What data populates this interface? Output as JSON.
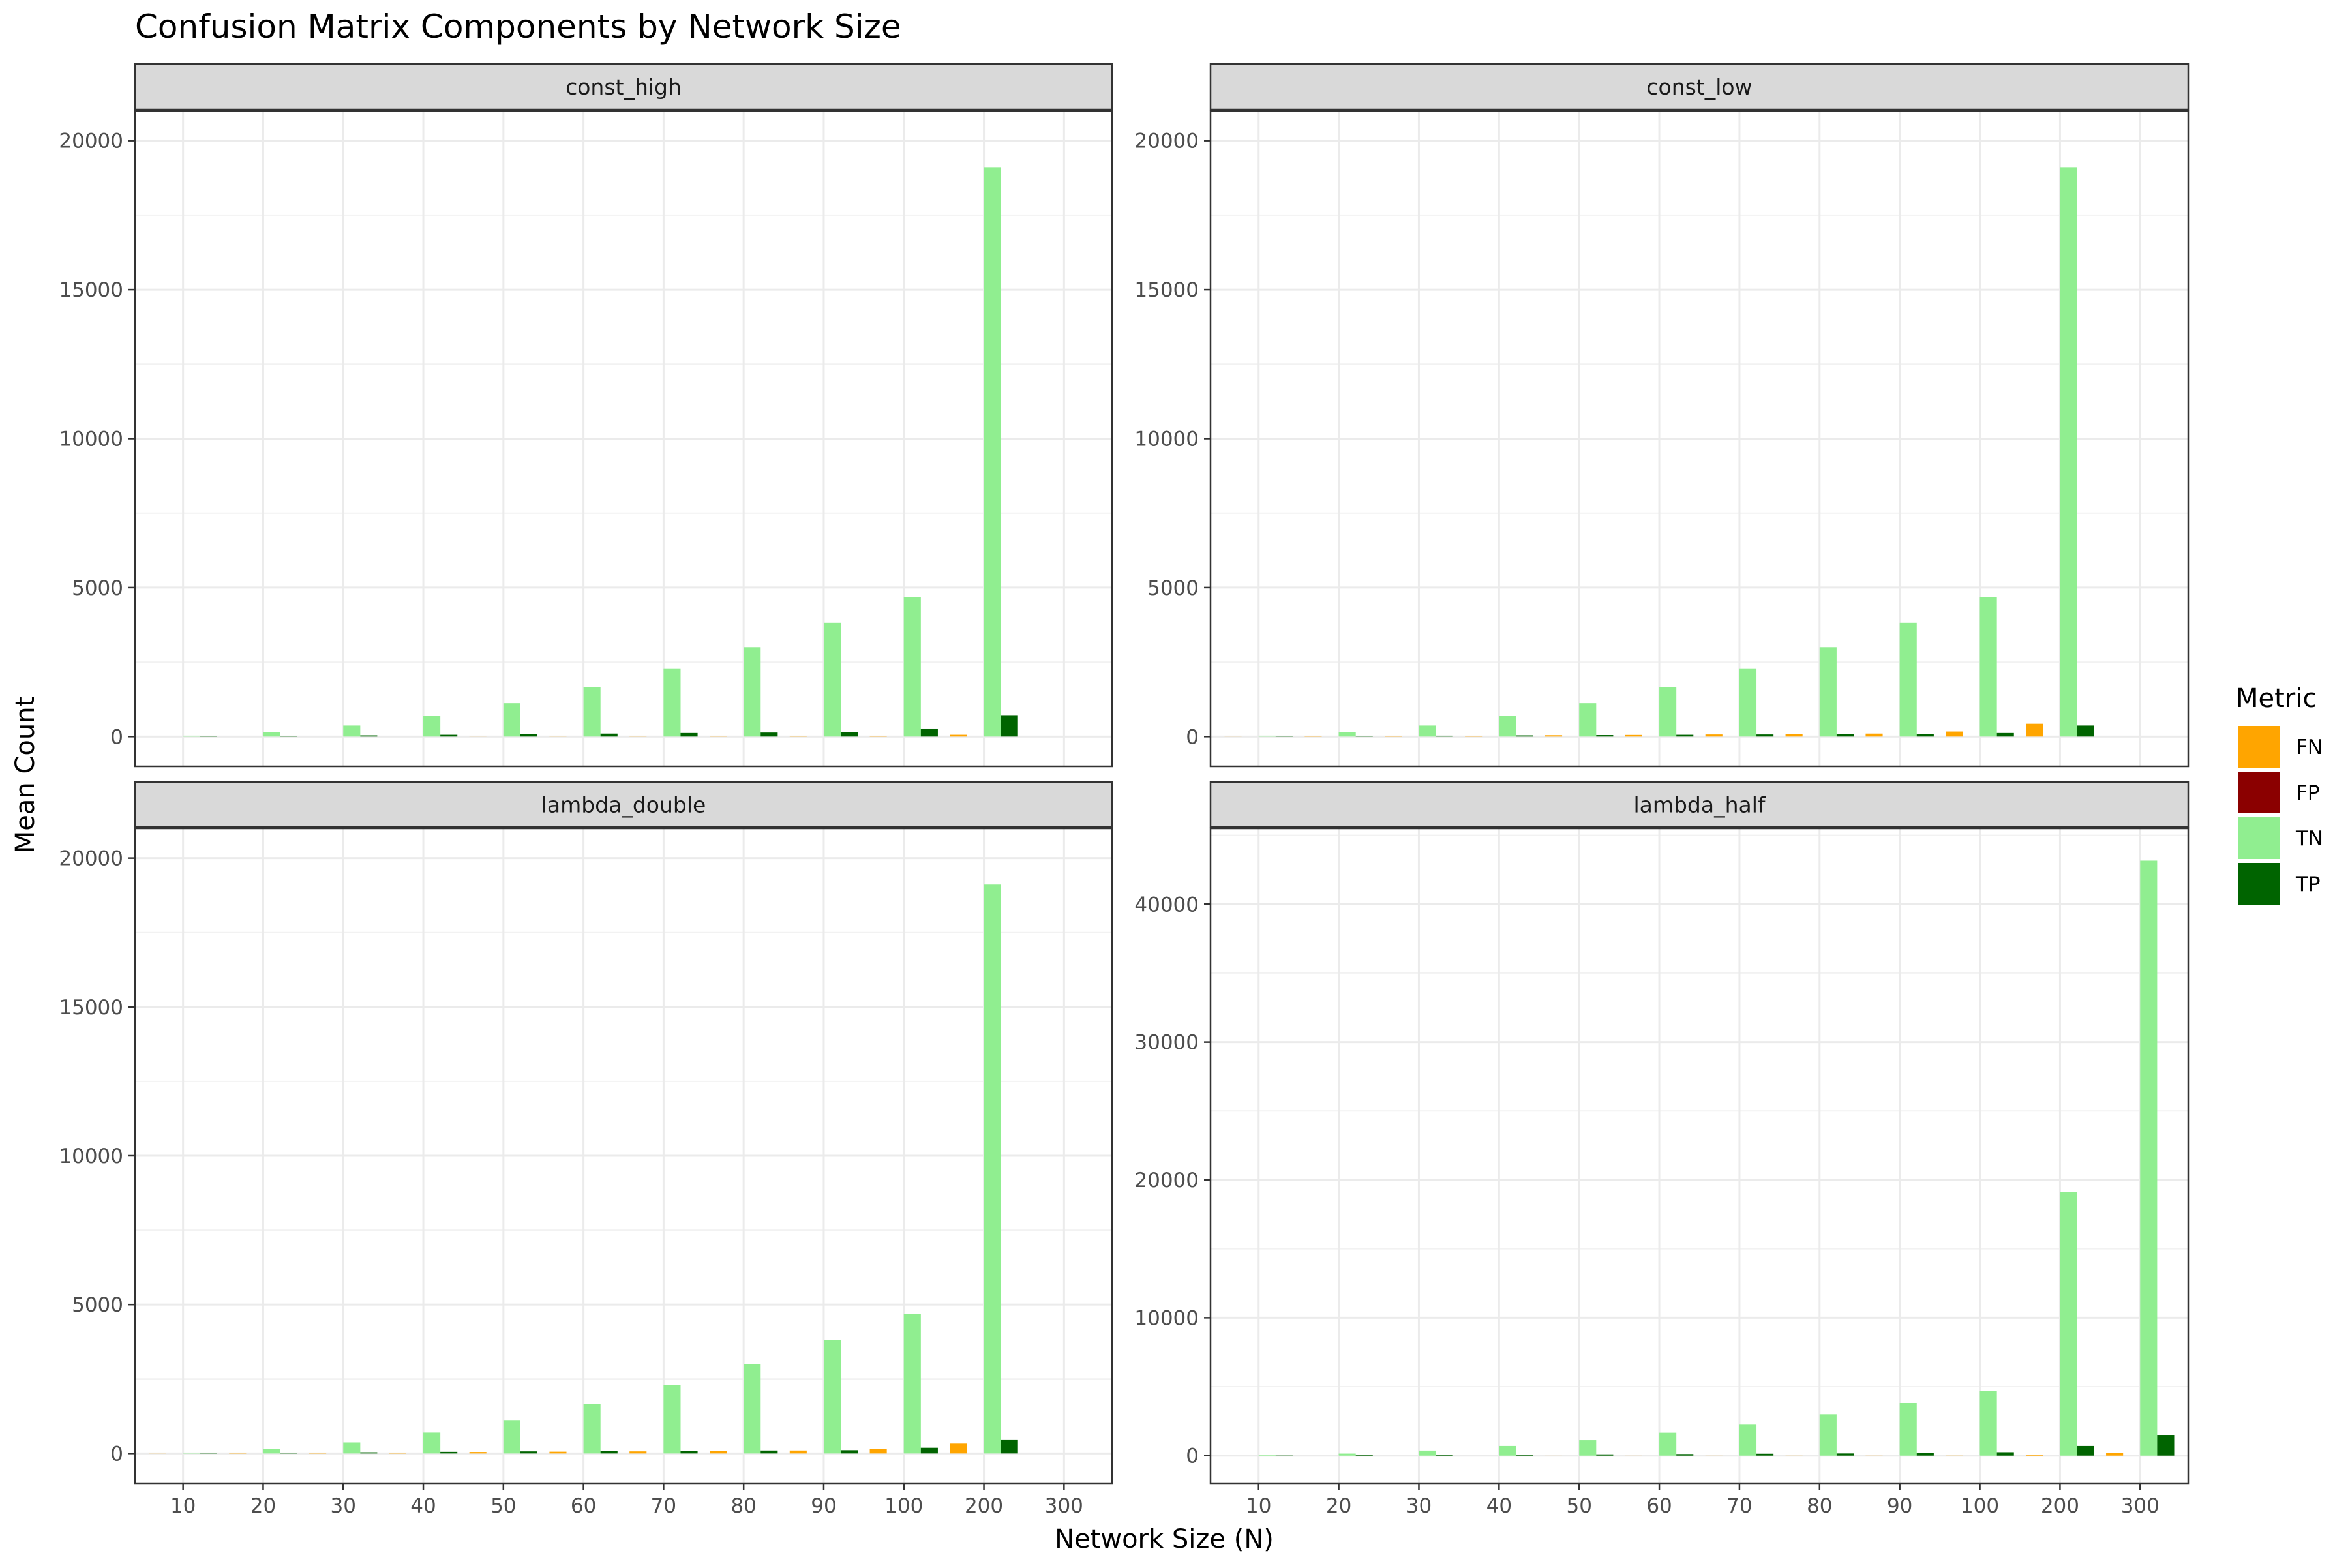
{
  "chart_data": {
    "type": "bar",
    "title": "Confusion Matrix Components by Network Size",
    "xlabel": "Network Size (N)",
    "ylabel": "Mean Count",
    "x": [
      "10",
      "20",
      "30",
      "40",
      "50",
      "60",
      "70",
      "80",
      "90",
      "100",
      "200",
      "300"
    ],
    "legend": {
      "title": "Metric",
      "position": "right",
      "entries": [
        {
          "name": "FN",
          "color": "#FFA500"
        },
        {
          "name": "FP",
          "color": "#8B0000"
        },
        {
          "name": "TN",
          "color": "#90EE90"
        },
        {
          "name": "TP",
          "color": "#006400"
        }
      ]
    },
    "grid": true,
    "panels": [
      {
        "name": "const_high",
        "ylim": [
          -1000,
          21000
        ],
        "yticks": [
          0,
          5000,
          10000,
          15000,
          20000
        ],
        "series": [
          {
            "name": "FN",
            "values": [
              0,
              0,
              0,
              0,
              2,
              3,
              4,
              5,
              6,
              15,
              60,
              null
            ]
          },
          {
            "name": "FP",
            "values": [
              0,
              0,
              0,
              0,
              0,
              0,
              0,
              0,
              0,
              0,
              0,
              null
            ]
          },
          {
            "name": "TN",
            "values": [
              30,
              150,
              370,
              700,
              1120,
              1660,
              2290,
              3000,
              3820,
              4680,
              19110,
              null
            ]
          },
          {
            "name": "TP",
            "values": [
              10,
              25,
              40,
              60,
              80,
              100,
              120,
              135,
              150,
              270,
              720,
              null
            ]
          }
        ]
      },
      {
        "name": "const_low",
        "ylim": [
          -1000,
          21000
        ],
        "yticks": [
          0,
          5000,
          10000,
          15000,
          20000
        ],
        "series": [
          {
            "name": "FN",
            "values": [
              2,
              8,
              15,
              25,
              45,
              55,
              70,
              80,
              100,
              170,
              430,
              null
            ]
          },
          {
            "name": "FP",
            "values": [
              0,
              0,
              0,
              0,
              0,
              0,
              0,
              0,
              0,
              0,
              0,
              null
            ]
          },
          {
            "name": "TN",
            "values": [
              30,
              150,
              370,
              700,
              1120,
              1660,
              2290,
              3000,
              3820,
              4680,
              19110,
              null
            ]
          },
          {
            "name": "TP",
            "values": [
              8,
              20,
              30,
              40,
              50,
              60,
              70,
              75,
              80,
              120,
              370,
              null
            ]
          }
        ]
      },
      {
        "name": "lambda_double",
        "ylim": [
          -1000,
          21000
        ],
        "yticks": [
          0,
          5000,
          10000,
          15000,
          20000
        ],
        "series": [
          {
            "name": "FN",
            "values": [
              3,
              10,
              20,
              30,
              50,
              60,
              70,
              85,
              100,
              140,
              330,
              null
            ]
          },
          {
            "name": "FP",
            "values": [
              0,
              0,
              0,
              0,
              0,
              0,
              0,
              0,
              0,
              0,
              0,
              null
            ]
          },
          {
            "name": "TN",
            "values": [
              30,
              150,
              370,
              700,
              1120,
              1660,
              2290,
              3000,
              3820,
              4680,
              19110,
              null
            ]
          },
          {
            "name": "TP",
            "values": [
              8,
              25,
              40,
              55,
              70,
              80,
              90,
              100,
              110,
              190,
              470,
              null
            ]
          }
        ]
      },
      {
        "name": "lambda_half",
        "ylim": [
          -2000,
          45500
        ],
        "yticks": [
          0,
          10000,
          20000,
          30000,
          40000
        ],
        "series": [
          {
            "name": "FN",
            "values": [
              0,
              0,
              0,
              0,
              2,
              3,
              4,
              5,
              6,
              8,
              40,
              180
            ]
          },
          {
            "name": "FP",
            "values": [
              0,
              0,
              0,
              0,
              0,
              0,
              0,
              0,
              0,
              0,
              0,
              0
            ]
          },
          {
            "name": "TN",
            "values": [
              30,
              150,
              370,
              700,
              1120,
              1660,
              2290,
              3000,
              3820,
              4680,
              19110,
              43160
            ]
          },
          {
            "name": "TP",
            "values": [
              15,
              35,
              55,
              75,
              95,
              115,
              140,
              160,
              180,
              250,
              700,
              1500
            ]
          }
        ]
      }
    ]
  }
}
